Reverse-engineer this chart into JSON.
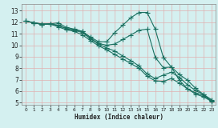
{
  "xlabel": "Humidex (Indice chaleur)",
  "bg_color": "#d4f0f0",
  "grid_color": "#b8d8d8",
  "line_color": "#1a7060",
  "xlim": [
    -0.5,
    23.5
  ],
  "ylim": [
    4.8,
    13.6
  ],
  "yticks": [
    5,
    6,
    7,
    8,
    9,
    10,
    11,
    12,
    13
  ],
  "xticks": [
    0,
    1,
    2,
    3,
    4,
    5,
    6,
    7,
    8,
    9,
    10,
    11,
    12,
    13,
    14,
    15,
    16,
    17,
    18,
    19,
    20,
    21,
    22,
    23
  ],
  "lines": [
    {
      "x": [
        0,
        1,
        2,
        3,
        4,
        5,
        6,
        7,
        8,
        9,
        10,
        11,
        12,
        13,
        14,
        15,
        16,
        17,
        18,
        19,
        20,
        21,
        22,
        23
      ],
      "y": [
        12.1,
        11.95,
        11.85,
        11.85,
        11.6,
        11.35,
        11.2,
        10.9,
        10.4,
        9.95,
        9.6,
        9.2,
        8.8,
        8.4,
        8.0,
        7.3,
        6.9,
        6.85,
        7.1,
        6.7,
        6.2,
        5.75,
        5.5,
        5.1
      ]
    },
    {
      "x": [
        0,
        1,
        2,
        3,
        4,
        5,
        6,
        7,
        8,
        9,
        10,
        11,
        12,
        13,
        14,
        15,
        16,
        17,
        18,
        19,
        20,
        21,
        22,
        23
      ],
      "y": [
        12.1,
        11.95,
        11.85,
        11.85,
        11.7,
        11.45,
        11.3,
        11.1,
        10.55,
        10.1,
        9.75,
        9.5,
        9.05,
        8.65,
        8.2,
        7.5,
        7.1,
        7.4,
        7.65,
        7.2,
        6.55,
        6.05,
        5.7,
        5.25
      ]
    },
    {
      "x": [
        0,
        1,
        2,
        3,
        4,
        5,
        6,
        7,
        8,
        9,
        10,
        11,
        12,
        13,
        14,
        15,
        16,
        17,
        18,
        19,
        20,
        21,
        22,
        23
      ],
      "y": [
        12.1,
        11.95,
        11.8,
        11.85,
        11.95,
        11.55,
        11.4,
        11.2,
        10.6,
        10.15,
        10.0,
        10.1,
        10.5,
        10.9,
        11.3,
        11.4,
        8.95,
        8.05,
        8.1,
        6.95,
        6.2,
        5.85,
        5.6,
        5.15
      ]
    },
    {
      "x": [
        0,
        1,
        2,
        3,
        4,
        5,
        6,
        7,
        8,
        9,
        10,
        11,
        12,
        13,
        14,
        15,
        16,
        17,
        18,
        19,
        20,
        21,
        22,
        23
      ],
      "y": [
        12.1,
        11.95,
        11.8,
        11.85,
        11.75,
        11.45,
        11.35,
        11.2,
        10.7,
        10.3,
        10.3,
        11.1,
        11.75,
        12.4,
        12.85,
        12.85,
        11.4,
        8.95,
        8.1,
        7.45,
        6.95,
        6.25,
        5.7,
        5.15
      ]
    }
  ],
  "marker": "+",
  "marker_size": 4.0,
  "linewidth": 0.8
}
